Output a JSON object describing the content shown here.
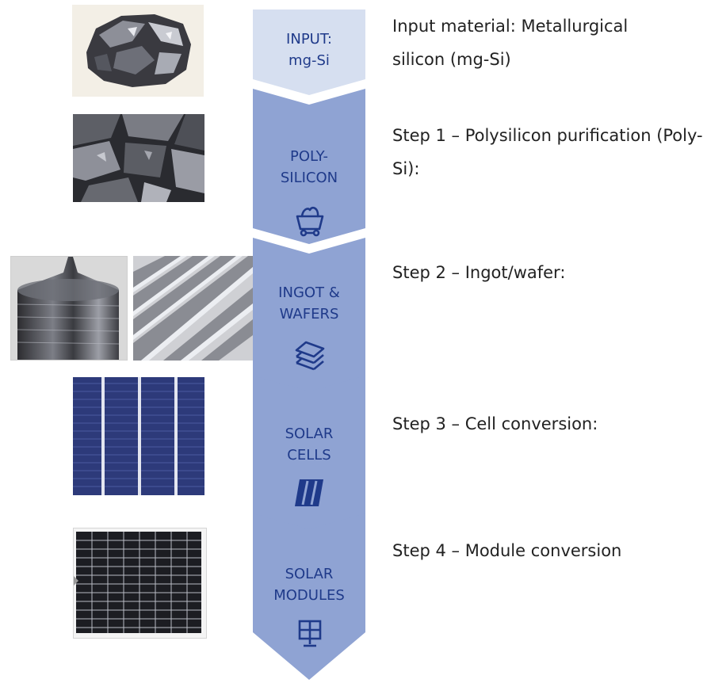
{
  "stages": [
    {
      "label_line1": "INPUT:",
      "label_line2": "mg-Si",
      "description": "Input material: Metallurgical silicon (mg-Si)",
      "icon": "none",
      "fill": "#d6dff0"
    },
    {
      "label_line1": "POLY-",
      "label_line2": "SILICON",
      "description": "Step 1 – Polysilicon purification (Poly-Si):",
      "icon": "mine-cart-icon",
      "fill": "#8fa3d3"
    },
    {
      "label_line1": "INGOT &",
      "label_line2": "WAFERS",
      "description": "Step 2 – Ingot/wafer:",
      "icon": "wafer-stack-icon",
      "fill": "#8fa3d3"
    },
    {
      "label_line1": "SOLAR",
      "label_line2": "CELLS",
      "description": "Step 3 – Cell conversion:",
      "icon": "solar-cell-icon",
      "fill": "#8fa3d3"
    },
    {
      "label_line1": "SOLAR",
      "label_line2": "MODULES",
      "description": "Step 4 – Module conversion",
      "icon": "solar-panel-icon",
      "fill": "#8fa3d3"
    }
  ],
  "photos": [
    "mg-si-lump-photo",
    "polysilicon-chunks-photo",
    "silicon-ingot-photo",
    "sliced-wafers-photo",
    "solar-cell-photo",
    "solar-module-photo"
  ]
}
